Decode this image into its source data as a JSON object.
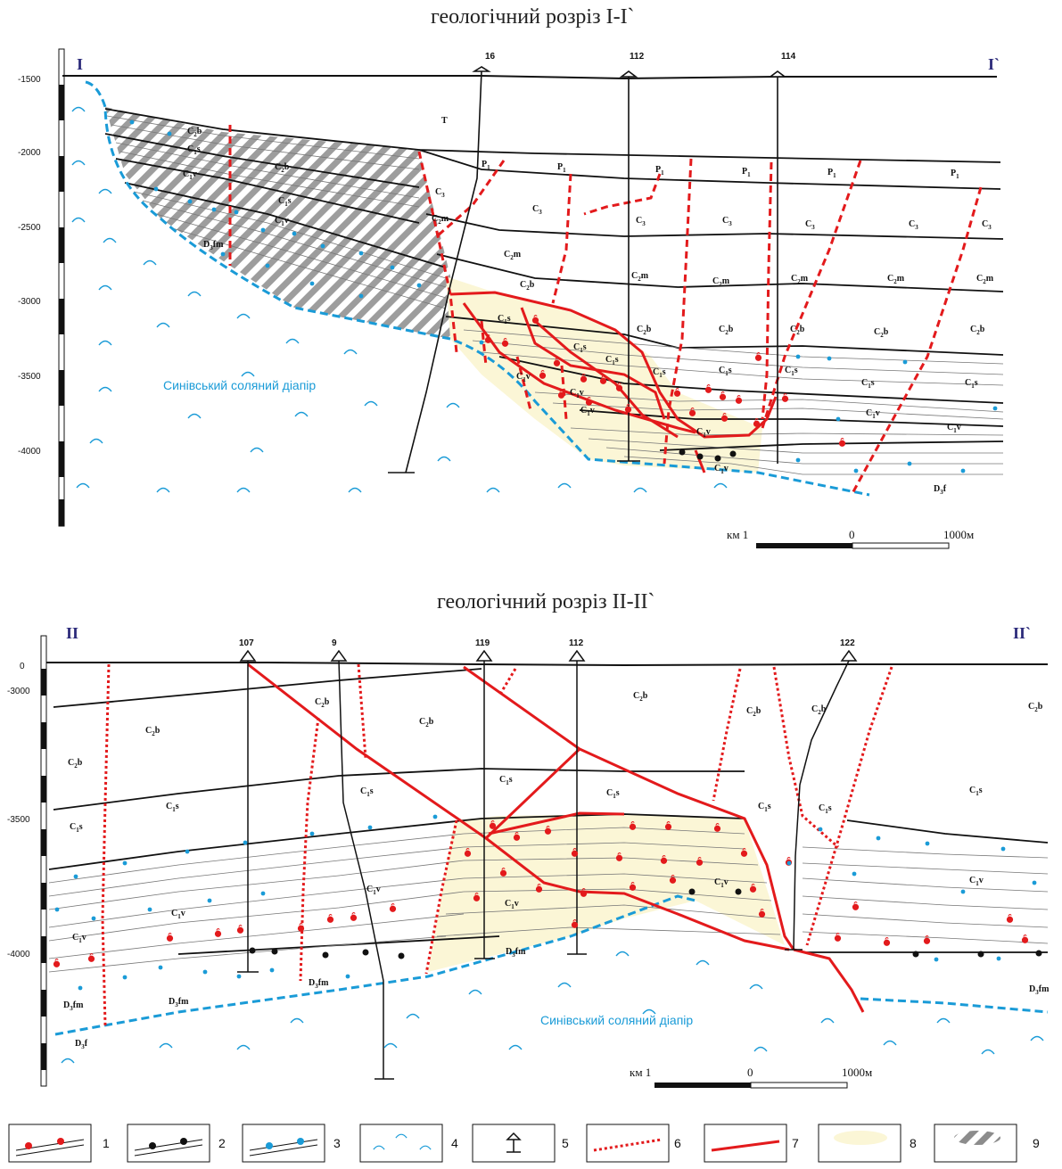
{
  "section1": {
    "title": "геологічний розріз I-I`",
    "start": "I",
    "end": "I`",
    "depth_ticks": [
      "-1500",
      "-2000",
      "-2500",
      "-3000",
      "-3500",
      "-4000"
    ],
    "wells": [
      "16",
      "112",
      "114"
    ],
    "diapir": "Синівський соляний діапір",
    "scale": {
      "left": "км 1",
      "mid": "0",
      "right": "1000м"
    },
    "labels": {
      "T": "T",
      "P1": "P",
      "C3": "C",
      "C2m": "C",
      "C2b": "C",
      "C1s": "C",
      "C1v": "C",
      "D3fm": "D",
      "D3f": "D"
    }
  },
  "section2": {
    "title": "геологічний розріз II-II`",
    "start": "II",
    "end": "II`",
    "depth_ticks": [
      "0",
      "-3000",
      "-3500",
      "-4000"
    ],
    "wells": [
      "107",
      "9",
      "119",
      "112",
      "122"
    ],
    "diapir": "Синівський соляний діапір",
    "scale": {
      "left": "км 1",
      "mid": "0",
      "right": "1000м"
    }
  },
  "legend": [
    "1",
    "2",
    "3",
    "4",
    "5",
    "6",
    "7",
    "8",
    "9"
  ],
  "colors": {
    "fault_dashed": "#e31a1c",
    "fault_solid": "#e31a1c",
    "salt_boundary": "#1a9bd7",
    "oil_zone": "#fbf6d6",
    "hatch": "#8c8c8c",
    "ink": "#111111"
  }
}
